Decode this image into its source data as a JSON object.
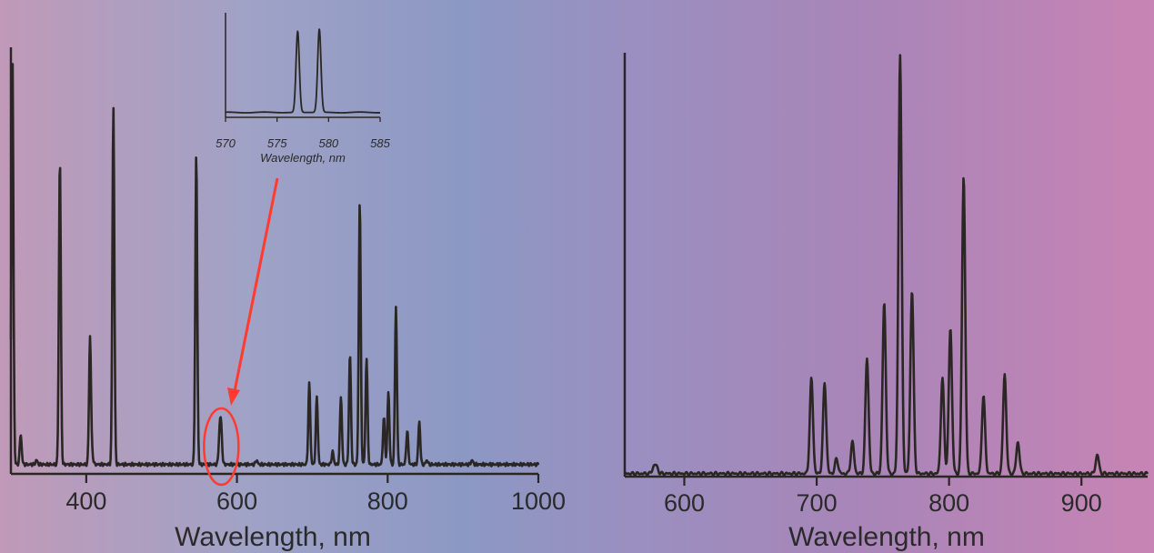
{
  "colors": {
    "line": "#2a2624",
    "highlight": "#ff3b30",
    "background_left": "#c09ab8",
    "background_mid": "#8c98c4",
    "background_right": "#c784b4"
  },
  "chart_data": [
    {
      "id": "left",
      "type": "line",
      "title": "",
      "xlabel": "Wavelength, nm",
      "ylabel": "",
      "xlim": [
        300,
        1000
      ],
      "ylim": [
        0,
        1.0
      ],
      "xticks": [
        400,
        600,
        800,
        1000
      ],
      "xtick_labels": [
        "400",
        "600",
        "800",
        "1000"
      ],
      "grid": false,
      "baseline": 0.02,
      "peaks": [
        {
          "x": 302,
          "y": 0.99
        },
        {
          "x": 313,
          "y": 0.09
        },
        {
          "x": 334,
          "y": 0.03
        },
        {
          "x": 365,
          "y": 0.74
        },
        {
          "x": 405,
          "y": 0.32
        },
        {
          "x": 408,
          "y": 0.04
        },
        {
          "x": 436,
          "y": 0.86
        },
        {
          "x": 546,
          "y": 0.75
        },
        {
          "x": 577,
          "y": 0.09
        },
        {
          "x": 579,
          "y": 0.1
        },
        {
          "x": 626,
          "y": 0.03
        },
        {
          "x": 696,
          "y": 0.21
        },
        {
          "x": 706,
          "y": 0.18
        },
        {
          "x": 727,
          "y": 0.05
        },
        {
          "x": 738,
          "y": 0.18
        },
        {
          "x": 750,
          "y": 0.28
        },
        {
          "x": 763,
          "y": 0.64
        },
        {
          "x": 772,
          "y": 0.27
        },
        {
          "x": 795,
          "y": 0.13
        },
        {
          "x": 801,
          "y": 0.19
        },
        {
          "x": 811,
          "y": 0.39
        },
        {
          "x": 826,
          "y": 0.1
        },
        {
          "x": 842,
          "y": 0.12
        },
        {
          "x": 852,
          "y": 0.03
        },
        {
          "x": 912,
          "y": 0.03
        }
      ],
      "annotation": {
        "target_x": 578,
        "label": ""
      }
    },
    {
      "id": "inset",
      "type": "line",
      "title": "",
      "xlabel": "Wavelength, nm",
      "ylabel": "",
      "xlim": [
        570,
        585
      ],
      "ylim": [
        0,
        1.0
      ],
      "xticks": [
        570,
        575,
        580,
        585
      ],
      "xtick_labels": [
        "570",
        "575",
        "580",
        "585"
      ],
      "grid": false,
      "baseline": 0.04,
      "peaks": [
        {
          "x": 577.0,
          "y": 0.85
        },
        {
          "x": 579.1,
          "y": 0.87
        }
      ]
    },
    {
      "id": "right",
      "type": "line",
      "title": "",
      "xlabel": "Wavelength, nm",
      "ylabel": "",
      "xlim": [
        555,
        950
      ],
      "ylim": [
        0,
        1.0
      ],
      "xticks": [
        600,
        700,
        800,
        900
      ],
      "xtick_labels": [
        "600",
        "700",
        "800",
        "900"
      ],
      "grid": false,
      "baseline": 0.005,
      "peaks": [
        {
          "x": 577,
          "y": 0.02
        },
        {
          "x": 579,
          "y": 0.02
        },
        {
          "x": 696,
          "y": 0.23
        },
        {
          "x": 706,
          "y": 0.22
        },
        {
          "x": 715,
          "y": 0.04
        },
        {
          "x": 727,
          "y": 0.08
        },
        {
          "x": 738,
          "y": 0.28
        },
        {
          "x": 751,
          "y": 0.41
        },
        {
          "x": 763,
          "y": 1.0
        },
        {
          "x": 772,
          "y": 0.44
        },
        {
          "x": 795,
          "y": 0.23
        },
        {
          "x": 801,
          "y": 0.35
        },
        {
          "x": 811,
          "y": 0.71
        },
        {
          "x": 826,
          "y": 0.19
        },
        {
          "x": 842,
          "y": 0.24
        },
        {
          "x": 852,
          "y": 0.08
        },
        {
          "x": 912,
          "y": 0.05
        }
      ]
    }
  ]
}
